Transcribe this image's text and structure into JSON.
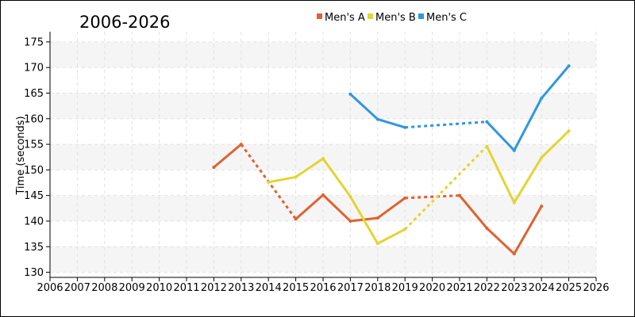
{
  "chart_data": {
    "type": "line",
    "title": "2006-2026",
    "xlabel": "",
    "ylabel": "Time (seconds)",
    "xlim": [
      2006,
      2026
    ],
    "ylim": [
      129,
      177
    ],
    "x_ticks": [
      2006,
      2007,
      2008,
      2009,
      2010,
      2011,
      2012,
      2013,
      2014,
      2015,
      2016,
      2017,
      2018,
      2019,
      2020,
      2021,
      2022,
      2023,
      2024,
      2025,
      2026
    ],
    "y_ticks": [
      130,
      135,
      140,
      145,
      150,
      155,
      160,
      165,
      170,
      175
    ],
    "grid": true,
    "legend_position": "top",
    "series": [
      {
        "name": "Men's A",
        "color": "#e0622f",
        "points": [
          {
            "x": 2012,
            "y": 150.5
          },
          {
            "x": 2013,
            "y": 155.0
          },
          {
            "x": 2015,
            "y": 140.4
          },
          {
            "x": 2016,
            "y": 145.1
          },
          {
            "x": 2017,
            "y": 140.0
          },
          {
            "x": 2018,
            "y": 140.6
          },
          {
            "x": 2019,
            "y": 144.5
          },
          {
            "x": 2021,
            "y": 145.0
          },
          {
            "x": 2022,
            "y": 138.6
          },
          {
            "x": 2023,
            "y": 133.6
          },
          {
            "x": 2024,
            "y": 142.9
          }
        ]
      },
      {
        "name": "Men's B",
        "color": "#e3d531",
        "points": [
          {
            "x": 2014,
            "y": 147.6
          },
          {
            "x": 2015,
            "y": 148.6
          },
          {
            "x": 2016,
            "y": 152.2
          },
          {
            "x": 2017,
            "y": 144.8
          },
          {
            "x": 2018,
            "y": 135.6
          },
          {
            "x": 2019,
            "y": 138.4
          },
          {
            "x": 2022,
            "y": 154.6
          },
          {
            "x": 2023,
            "y": 143.6
          },
          {
            "x": 2024,
            "y": 152.4
          },
          {
            "x": 2025,
            "y": 157.6
          }
        ]
      },
      {
        "name": "Men's C",
        "color": "#2f97e0",
        "points": [
          {
            "x": 2017,
            "y": 164.8
          },
          {
            "x": 2018,
            "y": 159.9
          },
          {
            "x": 2019,
            "y": 158.3
          },
          {
            "x": 2022,
            "y": 159.4
          },
          {
            "x": 2023,
            "y": 153.8
          },
          {
            "x": 2024,
            "y": 164.0
          },
          {
            "x": 2025,
            "y": 170.3
          }
        ]
      }
    ]
  }
}
